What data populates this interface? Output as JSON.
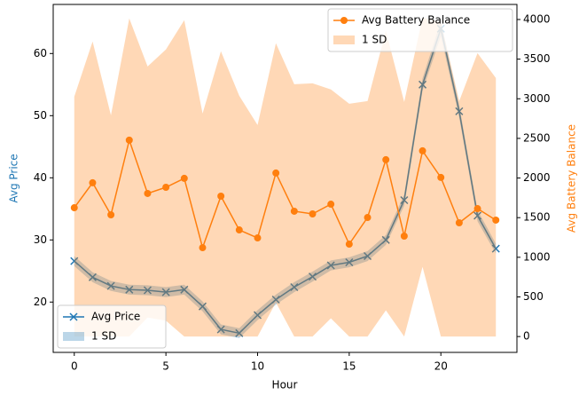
{
  "chart_data": {
    "type": "line",
    "x_label": "Hour",
    "y_label": "Avg Price",
    "y2_label": "Avg Battery Balance",
    "x": [
      0,
      1,
      2,
      3,
      4,
      5,
      6,
      7,
      8,
      9,
      10,
      11,
      12,
      13,
      14,
      15,
      16,
      17,
      18,
      19,
      20,
      21,
      22,
      23
    ],
    "xlim": [
      -1.15,
      24.15
    ],
    "xticks": [
      0,
      5,
      10,
      15,
      20
    ],
    "ylim": [
      11.9,
      67.9
    ],
    "yticks": [
      20,
      30,
      40,
      50,
      60
    ],
    "y2lim": [
      -200,
      4190
    ],
    "y2ticks": [
      0,
      500,
      1000,
      1500,
      2000,
      2500,
      3000,
      3500,
      4000
    ],
    "series": [
      {
        "name": "Avg Price",
        "color": "#1f77b4",
        "marker": "x",
        "axis": "y",
        "legend": "lower left",
        "values": [
          26.6,
          24.0,
          22.6,
          22.0,
          21.9,
          21.6,
          22.0,
          19.3,
          15.6,
          15.0,
          17.9,
          20.4,
          22.4,
          24.1,
          25.9,
          26.4,
          27.4,
          30.0,
          36.4,
          55.0,
          64.0,
          50.7,
          33.9,
          28.6
        ],
        "band": {
          "name": "1 SD",
          "color": "#1f77b4",
          "sd": [
            0.8,
            0.8,
            0.8,
            0.8,
            0.8,
            0.8,
            0.8,
            0.8,
            0.8,
            0.8,
            0.8,
            0.8,
            0.8,
            0.8,
            0.8,
            0.8,
            0.8,
            0.8,
            0.9,
            1.0,
            1.2,
            1.0,
            0.9,
            0.8
          ]
        }
      },
      {
        "name": "Avg Battery Balance",
        "color": "#ff7f0e",
        "marker": "o",
        "axis": "y2",
        "legend": "upper right",
        "values": [
          1625,
          1940,
          1536,
          2478,
          1805,
          1883,
          1996,
          1121,
          1771,
          1345,
          1244,
          2063,
          1581,
          1547,
          1670,
          1166,
          1502,
          2231,
          1267,
          2343,
          2007,
          1435,
          1614,
          1469
        ],
        "band": {
          "name": "1 SD",
          "color": "#ff7f0e",
          "lower": [
            0,
            0,
            0,
            0,
            240,
            200,
            0,
            0,
            0,
            0,
            0,
            430,
            0,
            0,
            230,
            0,
            0,
            330,
            0,
            880,
            0,
            0,
            0,
            0
          ],
          "upper": [
            3027,
            3722,
            2791,
            4013,
            3408,
            3621,
            3991,
            2814,
            3599,
            3038,
            2668,
            3700,
            3184,
            3195,
            3117,
            2937,
            2971,
            3857,
            2960,
            4025,
            3969,
            2971,
            3576,
            3262
          ]
        }
      }
    ]
  }
}
